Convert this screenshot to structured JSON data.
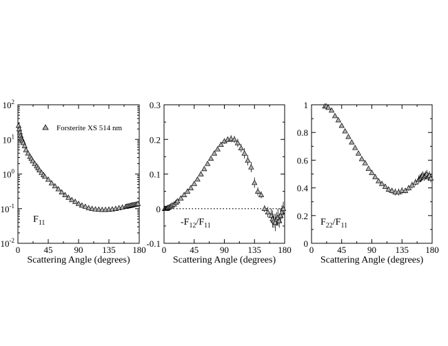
{
  "chart_data": [
    {
      "type": "scatter",
      "xlabel": "Scattering Angle (degrees)",
      "ylabel": "",
      "xlim": [
        0,
        180
      ],
      "ylim": [
        0.01,
        100
      ],
      "y_scale": "log",
      "x_ticks": [
        "0",
        "45",
        "90",
        "135",
        "180"
      ],
      "y_ticks": [
        {
          "base": "10",
          "exp": "-2"
        },
        {
          "base": "10",
          "exp": "-1"
        },
        {
          "base": "10",
          "exp": "0"
        },
        {
          "base": "10",
          "exp": "1"
        },
        {
          "base": "10",
          "exp": "2"
        }
      ],
      "inset_label": {
        "main": "F",
        "sub": "11",
        "mid": "",
        "main2": "",
        "sub2": "",
        "prefix": ""
      },
      "legend": {
        "label": "Forsterite XS 514 nm",
        "marker": "triangle",
        "position": "top-right"
      },
      "series": [
        {
          "name": "Forsterite XS 514 nm",
          "marker": "triangle",
          "x": [
            1,
            2,
            3,
            4,
            5,
            6,
            7,
            8,
            10,
            12,
            15,
            18,
            20,
            22,
            25,
            28,
            30,
            32,
            35,
            38,
            40,
            45,
            50,
            55,
            60,
            65,
            70,
            75,
            80,
            85,
            90,
            95,
            100,
            105,
            110,
            115,
            120,
            125,
            130,
            135,
            140,
            145,
            150,
            155,
            160,
            162,
            164,
            166,
            168,
            170,
            172,
            174,
            176,
            178
          ],
          "y": [
            25,
            20,
            16,
            13,
            11,
            10,
            9,
            8,
            6.5,
            5,
            4,
            3.2,
            2.8,
            2.4,
            2,
            1.7,
            1.5,
            1.3,
            1.1,
            0.95,
            0.85,
            0.7,
            0.55,
            0.45,
            0.37,
            0.3,
            0.25,
            0.21,
            0.18,
            0.16,
            0.14,
            0.125,
            0.115,
            0.105,
            0.1,
            0.097,
            0.095,
            0.094,
            0.094,
            0.095,
            0.097,
            0.1,
            0.105,
            0.11,
            0.115,
            0.118,
            0.12,
            0.122,
            0.125,
            0.128,
            0.13,
            0.132,
            0.135,
            0.14
          ]
        }
      ]
    },
    {
      "type": "scatter",
      "xlabel": "Scattering Angle (degrees)",
      "ylabel": "",
      "xlim": [
        0,
        180
      ],
      "ylim": [
        -0.1,
        0.3
      ],
      "y_scale": "linear",
      "x_ticks": [
        "0",
        "45",
        "90",
        "135",
        "180"
      ],
      "y_ticks": [
        "-0.1",
        "0",
        "0.1",
        "0.2",
        "0.3"
      ],
      "zero_line": "dotted",
      "inset_label": {
        "prefix": "-",
        "main": "F",
        "sub": "12",
        "mid": "/",
        "main2": "F",
        "sub2": "11"
      },
      "series": [
        {
          "name": "",
          "marker": "triangle",
          "x": [
            1,
            2,
            3,
            4,
            5,
            6,
            8,
            10,
            12,
            15,
            18,
            20,
            25,
            30,
            35,
            40,
            45,
            50,
            55,
            60,
            65,
            70,
            75,
            80,
            85,
            90,
            95,
            100,
            105,
            110,
            115,
            120,
            125,
            130,
            135,
            140,
            145,
            150,
            155,
            160,
            162,
            164,
            166,
            168,
            170,
            172,
            174,
            176,
            178
          ],
          "y": [
            0,
            0,
            0,
            0,
            0.002,
            0.003,
            0.005,
            0.007,
            0.01,
            0.013,
            0.018,
            0.022,
            0.03,
            0.04,
            0.05,
            0.06,
            0.072,
            0.085,
            0.1,
            0.115,
            0.13,
            0.145,
            0.16,
            0.172,
            0.185,
            0.195,
            0.2,
            0.202,
            0.2,
            0.19,
            0.175,
            0.16,
            0.14,
            0.12,
            0.075,
            0.05,
            0.04,
            0,
            -0.01,
            -0.02,
            -0.03,
            -0.035,
            -0.04,
            -0.03,
            -0.025,
            -0.035,
            -0.02,
            -0.01,
            0
          ],
          "yerr": [
            0.003,
            0.003,
            0.003,
            0.003,
            0.003,
            0.003,
            0.003,
            0.003,
            0.003,
            0.003,
            0.003,
            0.003,
            0.003,
            0.003,
            0.003,
            0.003,
            0.004,
            0.004,
            0.004,
            0.004,
            0.005,
            0.005,
            0.006,
            0.006,
            0.007,
            0.008,
            0.008,
            0.01,
            0.01,
            0.012,
            0.012,
            0.015,
            0.015,
            0.015,
            0.015,
            0.012,
            0.01,
            0.01,
            0.015,
            0.02,
            0.025,
            0.02,
            0.025,
            0.02,
            0.025,
            0.02,
            0.02,
            0.02,
            0.02
          ]
        }
      ]
    },
    {
      "type": "scatter",
      "xlabel": "Scattering Angle (degrees)",
      "ylabel": "",
      "xlim": [
        0,
        180
      ],
      "ylim": [
        0,
        1
      ],
      "y_scale": "linear",
      "x_ticks": [
        "0",
        "45",
        "90",
        "135",
        "180"
      ],
      "y_ticks": [
        "0",
        "0.2",
        "0.4",
        "0.6",
        "0.8",
        "1"
      ],
      "inset_label": {
        "prefix": "",
        "main": "F",
        "sub": "22",
        "mid": "/",
        "main2": "F",
        "sub2": "11"
      },
      "series": [
        {
          "name": "",
          "marker": "triangle",
          "x": [
            20,
            22,
            25,
            30,
            35,
            40,
            45,
            50,
            55,
            60,
            65,
            70,
            75,
            80,
            85,
            90,
            95,
            100,
            105,
            110,
            115,
            120,
            125,
            130,
            135,
            140,
            145,
            150,
            155,
            160,
            162,
            164,
            166,
            168,
            170,
            172,
            174,
            176,
            178
          ],
          "y": [
            0.99,
            0.99,
            0.98,
            0.96,
            0.92,
            0.89,
            0.85,
            0.81,
            0.77,
            0.73,
            0.69,
            0.65,
            0.61,
            0.58,
            0.54,
            0.51,
            0.48,
            0.45,
            0.43,
            0.41,
            0.39,
            0.38,
            0.37,
            0.37,
            0.38,
            0.38,
            0.4,
            0.42,
            0.44,
            0.46,
            0.47,
            0.48,
            0.49,
            0.48,
            0.49,
            0.5,
            0.48,
            0.49,
            0.47
          ],
          "yerr": [
            0.015,
            0.015,
            0.015,
            0.015,
            0.015,
            0.015,
            0.015,
            0.015,
            0.015,
            0.015,
            0.015,
            0.015,
            0.015,
            0.015,
            0.015,
            0.015,
            0.015,
            0.015,
            0.015,
            0.015,
            0.02,
            0.02,
            0.025,
            0.025,
            0.025,
            0.02,
            0.02,
            0.025,
            0.025,
            0.03,
            0.03,
            0.03,
            0.03,
            0.03,
            0.03,
            0.03,
            0.03,
            0.03,
            0.03
          ]
        }
      ]
    }
  ]
}
